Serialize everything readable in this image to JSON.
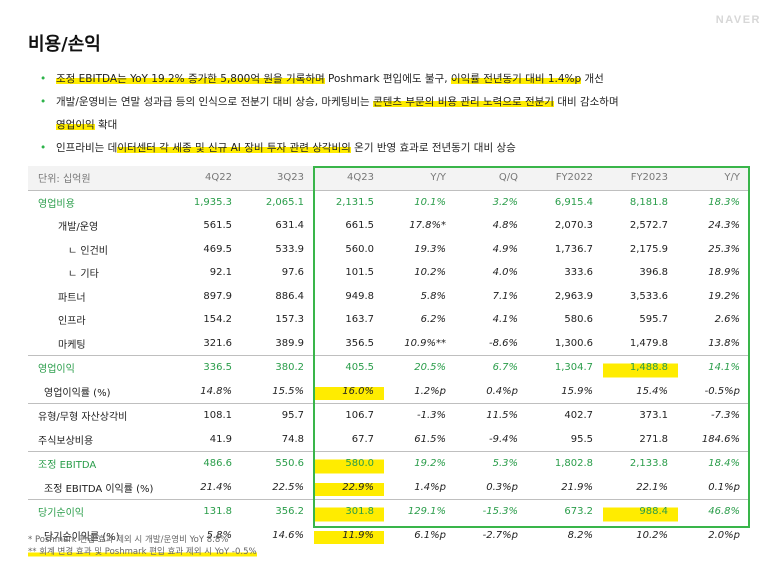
{
  "logo": "NAVER",
  "title": "비용/손익",
  "accent_color": "#39b54a",
  "highlight_color": "#ffec00",
  "bullets": [
    {
      "pre": "",
      "hl1": "조정 EBITDA는 YoY 19.2% 증가한 5,800억 원을 기록하며",
      "mid": " Poshmark 편입에도 불구, ",
      "hl2": "이익률 전년동기 대비 1.4%p",
      "post": " 개선"
    },
    {
      "pre": "개발/운영비는 연말 성과급 등의 인식으로 전분기 대비 상승, 마케팅비는 ",
      "hl1": "콘텐츠 부문의 비용 관리 노력으로 전분기",
      "mid": " 대비 감소하며",
      "hl2": "영업이익",
      "post": " 확대"
    },
    {
      "pre": "인프라비는 데",
      "hl1": "이터센터 각 세종 및 신규 AI 장비 투자 관련 상각비의",
      "mid": " 온기 반영 효과로 전년동기 대비 상승",
      "hl2": "",
      "post": ""
    }
  ],
  "table": {
    "headers": [
      "단위: 십억원",
      "4Q22",
      "3Q23",
      "4Q23",
      "Y/Y",
      "Q/Q",
      "FY2022",
      "FY2023",
      "Y/Y"
    ],
    "rows": [
      {
        "label": "영업비용",
        "values": [
          "1,935.3",
          "2,065.1",
          "2,131.5",
          "10.1%",
          "3.2%",
          "6,915.4",
          "8,181.8",
          "18.3%"
        ]
      },
      {
        "label": "개발/운영",
        "values": [
          "561.5",
          "631.4",
          "661.5",
          "17.8%*",
          "4.8%",
          "2,070.3",
          "2,572.7",
          "24.3%"
        ]
      },
      {
        "label": "ㄴ 인건비",
        "values": [
          "469.5",
          "533.9",
          "560.0",
          "19.3%",
          "4.9%",
          "1,736.7",
          "2,175.9",
          "25.3%"
        ]
      },
      {
        "label": "ㄴ 기타",
        "values": [
          "92.1",
          "97.6",
          "101.5",
          "10.2%",
          "4.0%",
          "333.6",
          "396.8",
          "18.9%"
        ]
      },
      {
        "label": "파트너",
        "values": [
          "897.9",
          "886.4",
          "949.8",
          "5.8%",
          "7.1%",
          "2,963.9",
          "3,533.6",
          "19.2%"
        ]
      },
      {
        "label": "인프라",
        "values": [
          "154.2",
          "157.3",
          "163.7",
          "6.2%",
          "4.1%",
          "580.6",
          "595.7",
          "2.6%"
        ]
      },
      {
        "label": "마케팅",
        "values": [
          "321.6",
          "389.9",
          "356.5",
          "10.9%**",
          "-8.6%",
          "1,300.6",
          "1,479.8",
          "13.8%"
        ]
      },
      {
        "label": "영업이익",
        "values": [
          "336.5",
          "380.2",
          "405.5",
          "20.5%",
          "6.7%",
          "1,304.7",
          "1,488.8",
          "14.1%"
        ]
      },
      {
        "label": "영업이익률 (%)",
        "values": [
          "14.8%",
          "15.5%",
          "16.0%",
          "1.2%p",
          "0.4%p",
          "15.9%",
          "15.4%",
          "-0.5%p"
        ]
      },
      {
        "label": "유형/무형 자산상각비",
        "values": [
          "108.1",
          "95.7",
          "106.7",
          "-1.3%",
          "11.5%",
          "402.7",
          "373.1",
          "-7.3%"
        ]
      },
      {
        "label": "주식보상비용",
        "values": [
          "41.9",
          "74.8",
          "67.7",
          "61.5%",
          "-9.4%",
          "95.5",
          "271.8",
          "184.6%"
        ]
      },
      {
        "label": "조정 EBITDA",
        "values": [
          "486.6",
          "550.6",
          "580.0",
          "19.2%",
          "5.3%",
          "1,802.8",
          "2,133.8",
          "18.4%"
        ]
      },
      {
        "label": "조정 EBITDA 이익률 (%)",
        "values": [
          "21.4%",
          "22.5%",
          "22.9%",
          "1.4%p",
          "0.3%p",
          "21.9%",
          "22.1%",
          "0.1%p"
        ]
      },
      {
        "label": "당기순이익",
        "values": [
          "131.8",
          "356.2",
          "301.8",
          "129.1%",
          "-15.3%",
          "673.2",
          "988.4",
          "46.8%"
        ]
      },
      {
        "label": "당기순이익률 (%)",
        "values": [
          "5.8%",
          "14.6%",
          "11.9%",
          "6.1%p",
          "-2.7%p",
          "8.2%",
          "10.2%",
          "2.0%p"
        ]
      }
    ]
  },
  "footnotes": [
    "* Poshmark 편입 효과 제외 시 개발/운영비 YoY 8.8%",
    "** 회계 변경 효과 및 Poshmark 편입 효과 제외 시 YoY -0.5%"
  ]
}
